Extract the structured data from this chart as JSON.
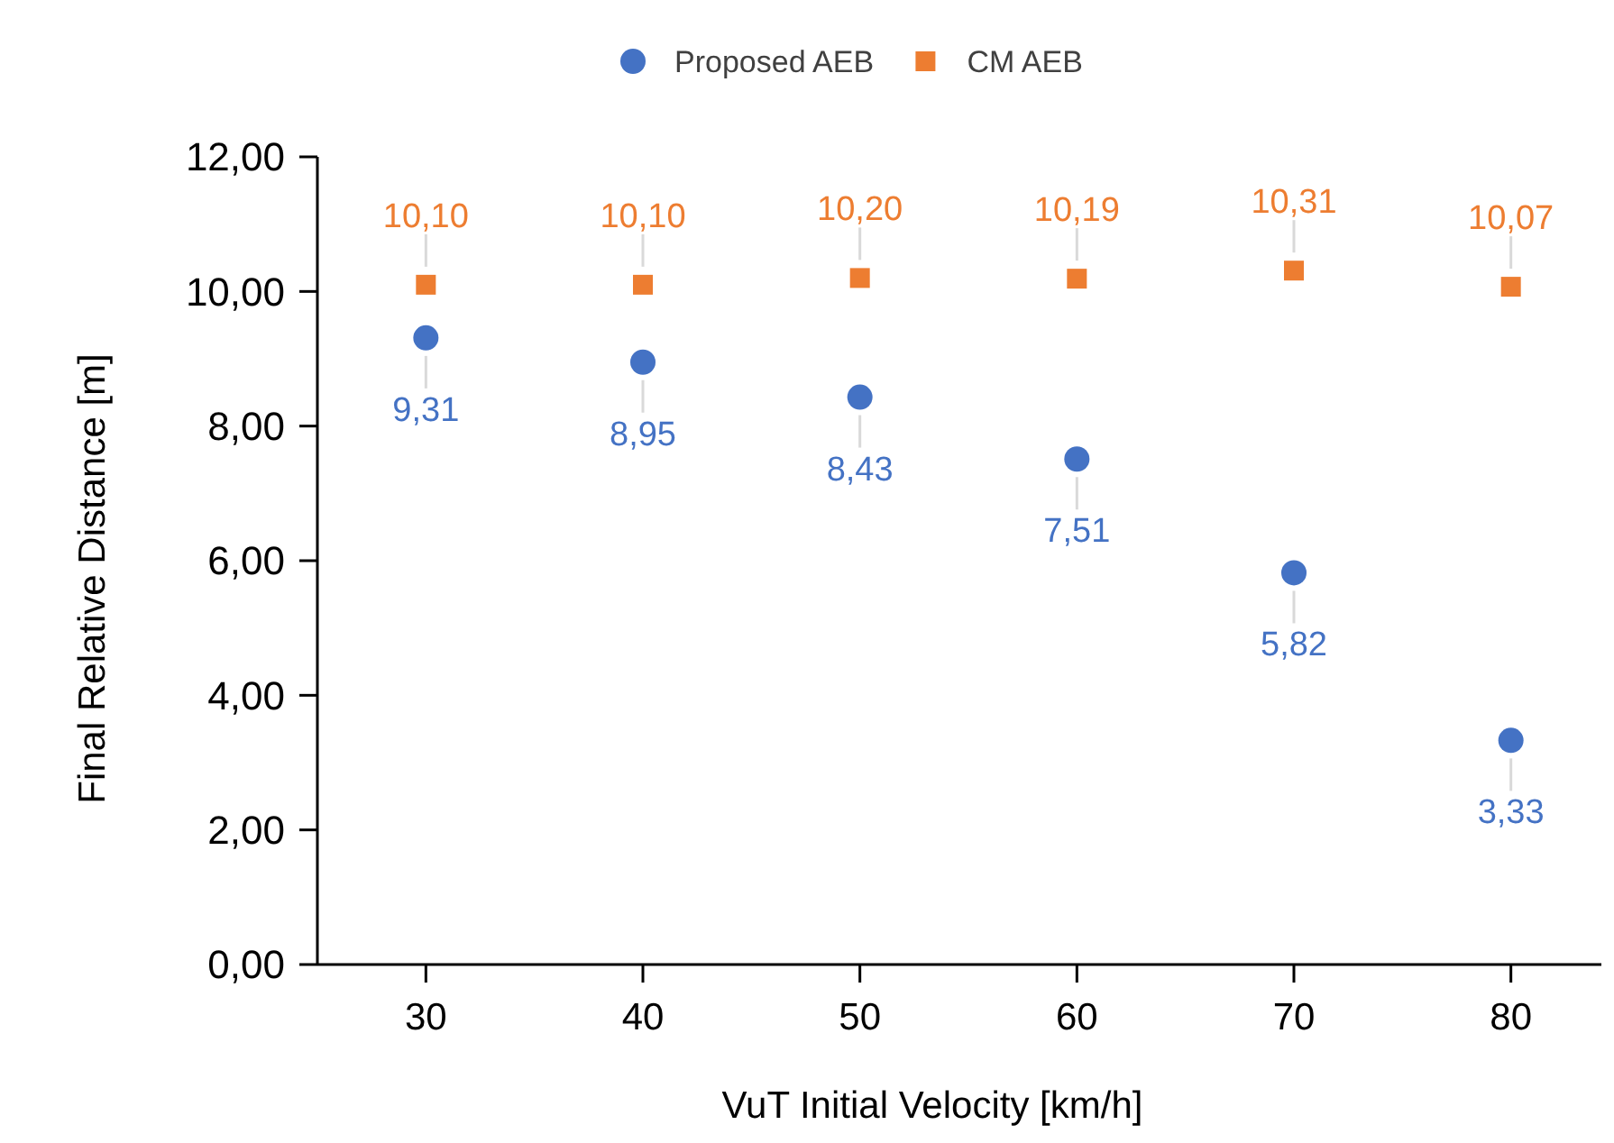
{
  "chart_data": {
    "type": "scatter",
    "xlabel": "VuT Initial Velocity [km/h]",
    "ylabel": "Final Relative Distance [m]",
    "categories": [
      "30",
      "40",
      "50",
      "60",
      "70",
      "80"
    ],
    "ylim": [
      0,
      12
    ],
    "yticks": [
      {
        "value": 0,
        "label": "0,00"
      },
      {
        "value": 2,
        "label": "2,00"
      },
      {
        "value": 4,
        "label": "4,00"
      },
      {
        "value": 6,
        "label": "6,00"
      },
      {
        "value": 8,
        "label": "8,00"
      },
      {
        "value": 10,
        "label": "10,00"
      },
      {
        "value": 12,
        "label": "12,00"
      }
    ],
    "grid": false,
    "legend": "top",
    "series": [
      {
        "name": "Proposed AEB",
        "color": "#4472c4",
        "marker": "circle",
        "values": [
          9.31,
          8.95,
          8.43,
          7.51,
          5.82,
          3.33
        ],
        "value_labels": [
          "9,31",
          "8,95",
          "8,43",
          "7,51",
          "5,82",
          "3,33"
        ]
      },
      {
        "name": "CM AEB",
        "color": "#ed7d31",
        "marker": "square",
        "values": [
          10.1,
          10.1,
          10.2,
          10.19,
          10.31,
          10.07
        ],
        "value_labels": [
          "10,10",
          "10,10",
          "10,20",
          "10,19",
          "10,31",
          "10,07"
        ]
      }
    ]
  }
}
